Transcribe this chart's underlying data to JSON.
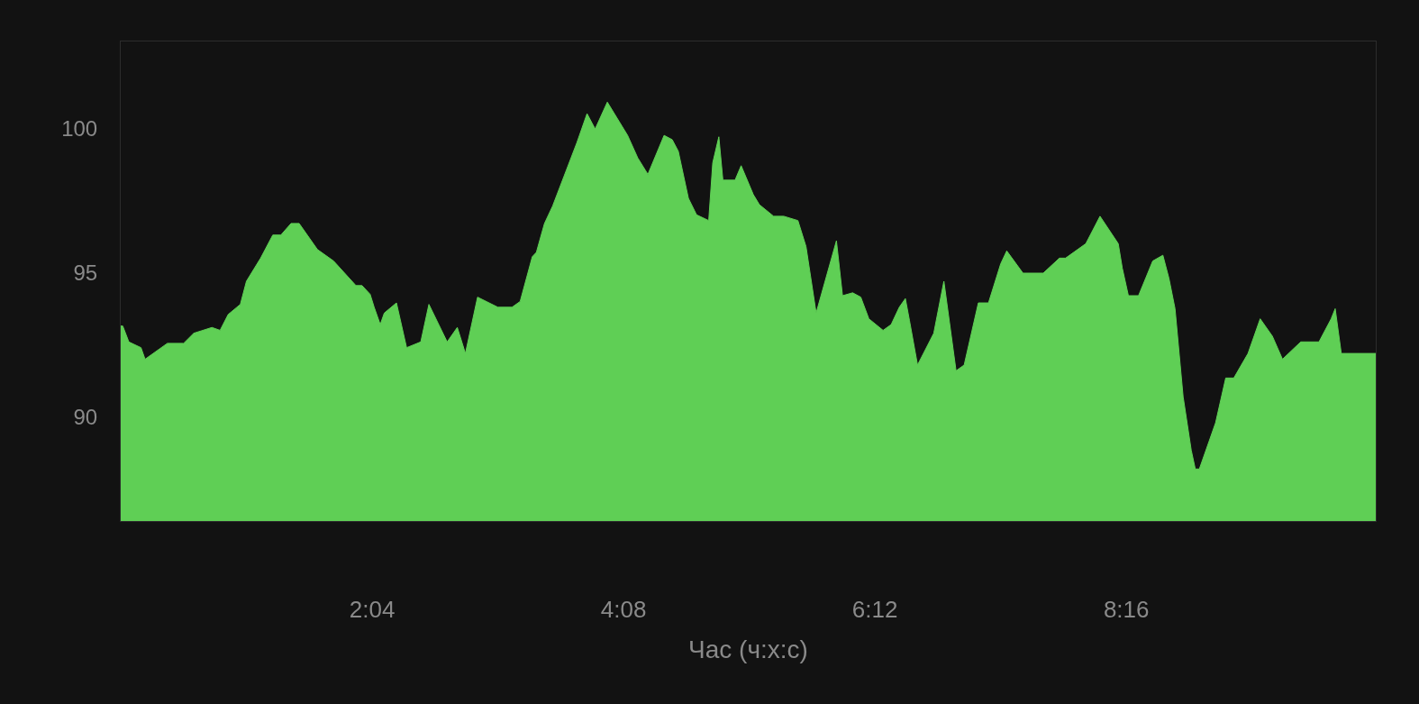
{
  "chart_data": {
    "type": "area",
    "xlabel": "Час (ч:х:с)",
    "grid": false,
    "marker": "none",
    "xlim": [
      0,
      619
    ],
    "ylim": [
      86.4,
      103
    ],
    "xticks": [
      {
        "value": 124,
        "label": "2:04"
      },
      {
        "value": 248,
        "label": "4:08"
      },
      {
        "value": 372,
        "label": "6:12"
      },
      {
        "value": 496,
        "label": "8:16"
      }
    ],
    "yticks": [
      90,
      95,
      100
    ],
    "series": [
      {
        "color": "#5fcf55",
        "x": [
          0,
          1,
          4,
          10,
          12,
          23,
          31,
          36,
          45,
          49,
          53,
          59,
          62,
          69,
          75,
          79,
          84,
          88,
          97,
          105,
          116,
          119,
          123,
          125,
          128,
          130,
          136,
          141,
          148,
          152,
          161,
          166,
          170,
          176,
          186,
          193,
          197,
          203,
          205,
          209,
          213,
          225,
          230,
          234,
          240,
          250,
          255,
          260,
          268,
          272,
          275,
          280,
          284,
          290,
          292,
          295,
          297,
          303,
          306,
          312,
          315,
          322,
          327,
          334,
          338,
          343,
          353,
          356,
          361,
          365,
          369,
          376,
          380,
          384,
          387,
          389,
          393,
          401,
          406,
          412,
          416,
          423,
          428,
          434,
          437,
          445,
          455,
          463,
          466,
          476,
          483,
          492,
          494,
          497,
          502,
          509,
          514,
          517,
          520,
          524,
          528,
          530,
          532,
          540,
          545,
          549,
          556,
          562,
          568,
          573,
          582,
          591,
          597,
          599,
          602,
          619
        ],
        "values": [
          93.15,
          93.15,
          92.6,
          92.4,
          92.0,
          92.55,
          92.55,
          92.9,
          93.1,
          93.0,
          93.55,
          93.9,
          94.7,
          95.5,
          96.3,
          96.3,
          96.7,
          96.7,
          95.8,
          95.4,
          94.55,
          94.55,
          94.25,
          93.8,
          93.2,
          93.6,
          93.95,
          92.4,
          92.6,
          93.9,
          92.6,
          93.1,
          92.2,
          94.15,
          93.8,
          93.8,
          94.0,
          95.55,
          95.7,
          96.7,
          97.3,
          99.5,
          100.5,
          99.97,
          100.9,
          99.75,
          98.97,
          98.4,
          99.75,
          99.6,
          99.2,
          97.57,
          97.0,
          96.8,
          98.8,
          99.7,
          98.2,
          98.2,
          98.7,
          97.7,
          97.35,
          96.95,
          96.95,
          96.8,
          95.9,
          93.6,
          96.1,
          94.2,
          94.3,
          94.15,
          93.4,
          93.0,
          93.2,
          93.8,
          94.1,
          93.35,
          91.8,
          92.9,
          94.7,
          91.6,
          91.8,
          93.95,
          93.95,
          95.3,
          95.75,
          94.98,
          94.98,
          95.5,
          95.5,
          96.0,
          96.95,
          96.0,
          95.15,
          94.2,
          94.2,
          95.4,
          95.6,
          94.8,
          93.75,
          90.7,
          88.85,
          88.2,
          88.2,
          89.8,
          91.35,
          91.35,
          92.2,
          93.4,
          92.8,
          92.0,
          92.6,
          92.6,
          93.4,
          93.75,
          92.2,
          92.2
        ]
      }
    ]
  }
}
